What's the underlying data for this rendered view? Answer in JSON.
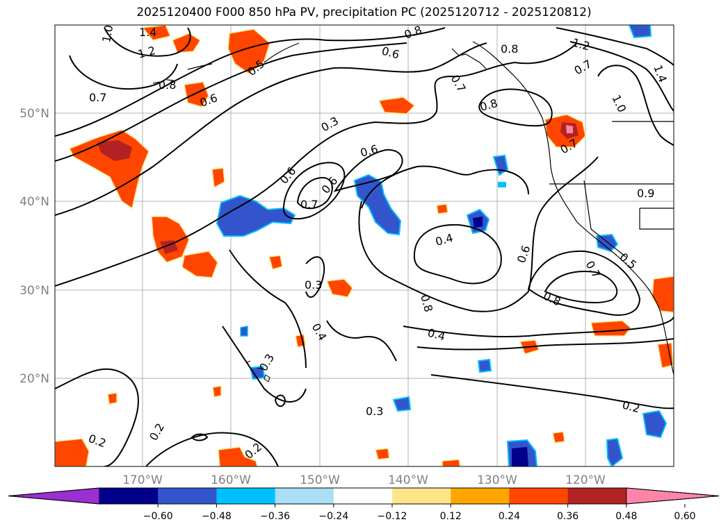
{
  "title": "2025120400 F000 850 hPa PV, precipitation PC (2025120712 - 2025120812)",
  "map": {
    "lat_labels": [
      "50°N",
      "40°N",
      "30°N",
      "20°N"
    ],
    "lon_labels": [
      "170°W",
      "160°W",
      "150°W",
      "140°W",
      "130°W",
      "120°W"
    ],
    "gridlines": true,
    "contour_variable": "850 hPa PV",
    "contour_labels": [
      "1.0",
      "1.4",
      "1.2",
      "0.8",
      "0.7",
      "0.5",
      "0.6",
      "0.8",
      "0.6",
      "0.7",
      "0.8",
      "1.2",
      "1.4",
      "1.0",
      "0.8",
      "0.7",
      "0.7",
      "0.3",
      "0.6",
      "0.6",
      "0.7",
      "0.4",
      "0.6",
      "0.9",
      "0.6",
      "0.8",
      "0.8",
      "0.7",
      "0.5",
      "0.3",
      "0.4",
      "0.4",
      "0.3",
      "0.3",
      "0.2",
      "0.2",
      "0.2",
      "0.2"
    ]
  },
  "colorbar": {
    "ticks": [
      "−0.60",
      "−0.48",
      "−0.36",
      "−0.24",
      "−0.12",
      "0.12",
      "0.24",
      "0.36",
      "0.48",
      "0.60"
    ],
    "colors": [
      "#9b30d0",
      "#00008b",
      "#3355cc",
      "#00bfff",
      "#aadff5",
      "#ffffff",
      "#fde68a",
      "#ffa500",
      "#ff4500",
      "#b22222",
      "#ff85a8"
    ],
    "extend": "both"
  }
}
